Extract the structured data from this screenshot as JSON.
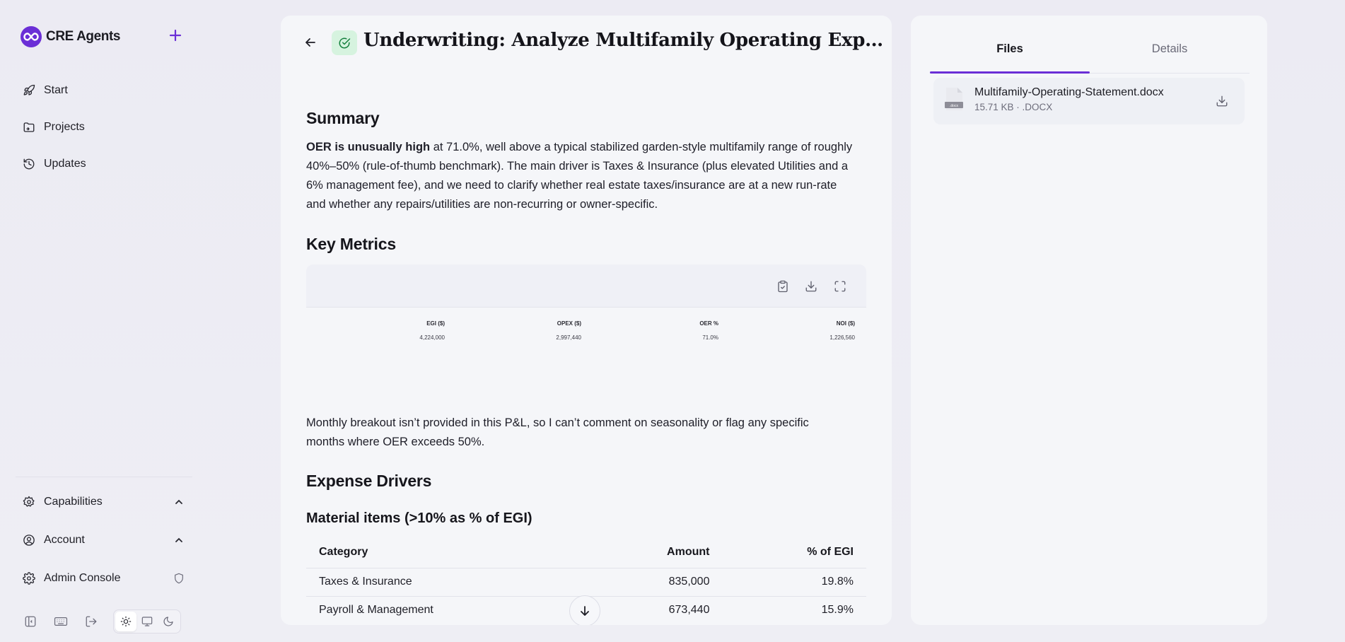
{
  "app": {
    "name": "CRE Agents",
    "brand_color": "#6b2fd6"
  },
  "sidebar": {
    "new_button_icon": "plus-icon",
    "items": [
      {
        "label": "Start",
        "icon": "rocket-icon"
      },
      {
        "label": "Projects",
        "icon": "folder-icon"
      },
      {
        "label": "Updates",
        "icon": "history-icon"
      }
    ],
    "bottom_items": [
      {
        "label": "Capabilities",
        "icon": "puzzle-gear-icon",
        "trail": "chevron-up-icon"
      },
      {
        "label": "Account",
        "icon": "user-circle-icon",
        "trail": "chevron-up-icon"
      },
      {
        "label": "Admin Console",
        "icon": "gear-icon",
        "trail": "shield-icon"
      }
    ],
    "tools": [
      "collapse-sidebar-icon",
      "keyboard-icon",
      "logout-icon"
    ],
    "theme": {
      "options": [
        "light",
        "system",
        "dark"
      ],
      "active": "light"
    }
  },
  "main": {
    "title": "Underwriting: Analyze Multifamily Operating Expenses",
    "status": "completed",
    "summary": {
      "heading": "Summary",
      "bold_lead": "OER is unusually high",
      "text": " at 71.0%, well above a typical stabilized garden-style multifamily range of roughly 40%–50% (rule-of-thumb benchmark). The main driver is Taxes & Insurance (plus elevated Utilities and a 6% management fee), and we need to clarify whether real estate taxes/insurance are at a new run-rate and whether any repairs/utilities are non-recurring or owner-specific."
    },
    "key_metrics": {
      "heading": "Key Metrics",
      "toolbar": [
        "clipboard-icon",
        "download-icon",
        "expand-icon"
      ],
      "columns": [
        {
          "label": "EGI ($)",
          "value": "4,224,000"
        },
        {
          "label": "OPEX ($)",
          "value": "2,997,440"
        },
        {
          "label": "OER %",
          "value": "71.0%"
        },
        {
          "label": "NOI ($)",
          "value": "1,226,560"
        }
      ]
    },
    "monthly_note": "Monthly breakout isn’t provided in this P&L, so I can’t comment on seasonality or flag any specific months where OER exceeds 50%.",
    "expense_drivers": {
      "heading": "Expense Drivers",
      "subheading": "Material items (>10% as % of EGI)",
      "headers": [
        "Category",
        "Amount",
        "% of EGI"
      ],
      "rows": [
        [
          "Taxes & Insurance",
          "835,000",
          "19.8%"
        ],
        [
          "Payroll & Management",
          "673,440",
          "15.9%"
        ]
      ]
    }
  },
  "right_panel": {
    "tabs": [
      "Files",
      "Details"
    ],
    "active_tab": "Files",
    "files": [
      {
        "name": "Multifamily-Operating-Statement.docx",
        "meta": "15.71 KB · .DOCX",
        "thumb_label": ".docx"
      }
    ]
  }
}
